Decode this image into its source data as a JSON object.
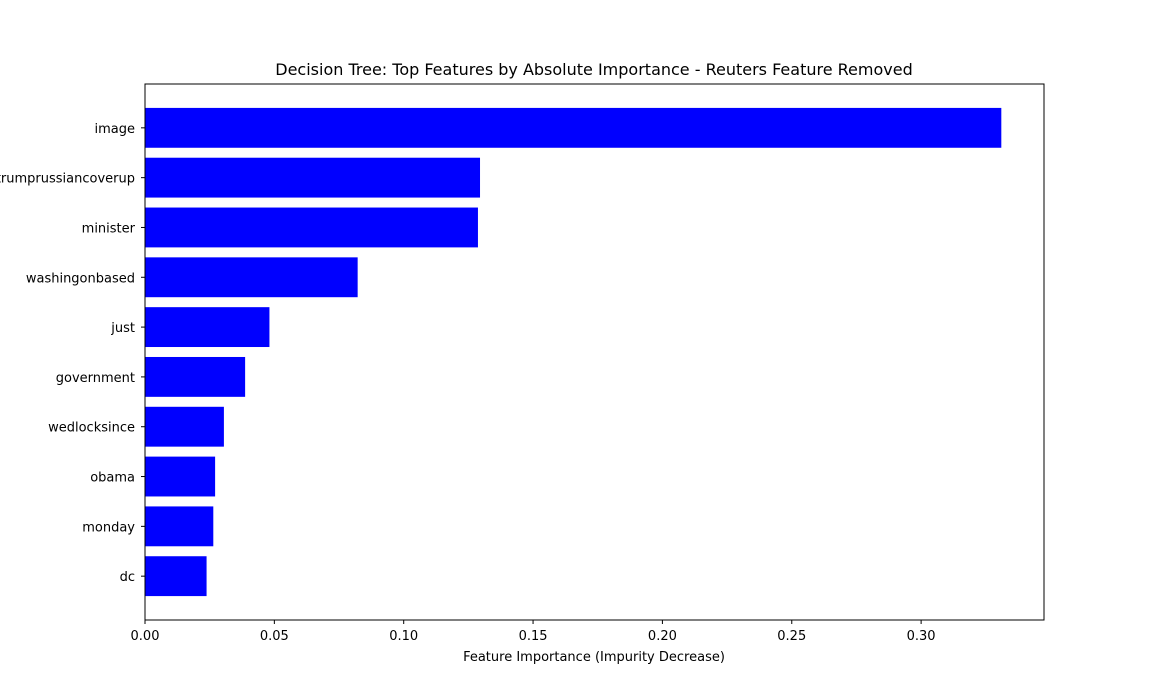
{
  "chart_data": {
    "type": "bar",
    "orientation": "horizontal",
    "title": "Decision Tree: Top Features by Absolute Importance - Reuters Feature Removed",
    "xlabel": "Feature Importance (Impurity Decrease)",
    "ylabel": "",
    "categories": [
      "image",
      "trumprussiancoverup",
      "minister",
      "washingonbased",
      "just",
      "government",
      "wedlocksince",
      "obama",
      "monday",
      "dc"
    ],
    "values": [
      0.331,
      0.1295,
      0.1287,
      0.0822,
      0.0481,
      0.0387,
      0.0305,
      0.0271,
      0.0264,
      0.0238
    ],
    "xlim": [
      0,
      0.3475
    ],
    "xticks": [
      "0.00",
      "0.05",
      "0.10",
      "0.15",
      "0.20",
      "0.25",
      "0.30"
    ],
    "bar_color": "#0000ff",
    "grid": false,
    "legend": "none"
  }
}
